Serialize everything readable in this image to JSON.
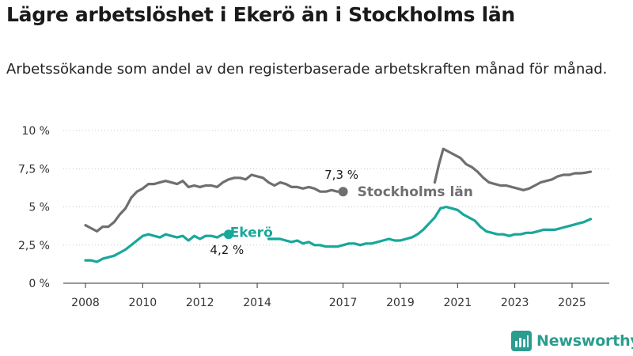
{
  "header": {
    "title": "Lägre arbetslöshet i Ekerö än i Stockholms län",
    "subtitle": "Arbetssökande som andel av den registerbaserade arbetskraften månad för månad."
  },
  "brand": {
    "name": "Newsworthy",
    "icon": "bar-chart-logo-icon"
  },
  "chart_data": {
    "type": "line",
    "title": "Lägre arbetslöshet i Ekerö än i Stockholms län",
    "subtitle": "Arbetssökande som andel av den registerbaserade arbetskraften månad för månad.",
    "xlabel": "",
    "ylabel": "",
    "x_ticks": [
      2008,
      2010,
      2012,
      2014,
      2017,
      2019,
      2021,
      2023,
      2025
    ],
    "y_ticks": [
      0,
      2.5,
      5,
      7.5,
      10
    ],
    "y_tick_labels": [
      "0 %",
      "2,5 %",
      "5 %",
      "7,5 %",
      "10 %"
    ],
    "ylim": [
      0,
      10
    ],
    "xlim": [
      2007.6,
      2026.0
    ],
    "grid": true,
    "series": [
      {
        "name": "Stockholms län",
        "color": "#6f6e72",
        "end_label": "7,3 %",
        "points": [
          [
            2008.0,
            3.8
          ],
          [
            2008.2,
            3.6
          ],
          [
            2008.4,
            3.4
          ],
          [
            2008.6,
            3.7
          ],
          [
            2008.8,
            3.7
          ],
          [
            2009.0,
            4.0
          ],
          [
            2009.2,
            4.5
          ],
          [
            2009.4,
            4.9
          ],
          [
            2009.6,
            5.6
          ],
          [
            2009.8,
            6.0
          ],
          [
            2010.0,
            6.2
          ],
          [
            2010.2,
            6.5
          ],
          [
            2010.4,
            6.5
          ],
          [
            2010.6,
            6.6
          ],
          [
            2010.8,
            6.7
          ],
          [
            2011.0,
            6.6
          ],
          [
            2011.2,
            6.5
          ],
          [
            2011.4,
            6.7
          ],
          [
            2011.6,
            6.3
          ],
          [
            2011.8,
            6.4
          ],
          [
            2012.0,
            6.3
          ],
          [
            2012.2,
            6.4
          ],
          [
            2012.4,
            6.4
          ],
          [
            2012.6,
            6.3
          ],
          [
            2012.8,
            6.6
          ],
          [
            2013.0,
            6.8
          ],
          [
            2013.2,
            6.9
          ],
          [
            2013.4,
            6.9
          ],
          [
            2013.6,
            6.8
          ],
          [
            2013.8,
            7.1
          ],
          [
            2014.0,
            7.0
          ],
          [
            2014.2,
            6.9
          ],
          [
            2014.4,
            6.6
          ],
          [
            2014.6,
            6.4
          ],
          [
            2014.8,
            6.6
          ],
          [
            2015.0,
            6.5
          ],
          [
            2015.2,
            6.3
          ],
          [
            2015.4,
            6.3
          ],
          [
            2015.6,
            6.2
          ],
          [
            2015.8,
            6.3
          ],
          [
            2016.0,
            6.2
          ],
          [
            2016.2,
            6.0
          ],
          [
            2016.4,
            6.0
          ],
          [
            2016.6,
            6.1
          ],
          [
            2016.8,
            6.0
          ],
          [
            2017.0,
            6.0
          ]
        ]
      },
      {
        "name": "Stockholms län (fortsättning)",
        "color": "#6f6e72",
        "points": [
          [
            2020.2,
            6.6
          ],
          [
            2020.35,
            7.8
          ],
          [
            2020.5,
            8.8
          ],
          [
            2020.7,
            8.6
          ],
          [
            2020.9,
            8.4
          ],
          [
            2021.1,
            8.2
          ],
          [
            2021.3,
            7.8
          ],
          [
            2021.5,
            7.6
          ],
          [
            2021.7,
            7.3
          ],
          [
            2021.9,
            6.9
          ],
          [
            2022.1,
            6.6
          ],
          [
            2022.3,
            6.5
          ],
          [
            2022.5,
            6.4
          ],
          [
            2022.7,
            6.4
          ],
          [
            2022.9,
            6.3
          ],
          [
            2023.1,
            6.2
          ],
          [
            2023.3,
            6.1
          ],
          [
            2023.5,
            6.2
          ],
          [
            2023.7,
            6.4
          ],
          [
            2023.9,
            6.6
          ],
          [
            2024.1,
            6.7
          ],
          [
            2024.3,
            6.8
          ],
          [
            2024.5,
            7.0
          ],
          [
            2024.7,
            7.1
          ],
          [
            2024.9,
            7.1
          ],
          [
            2025.1,
            7.2
          ],
          [
            2025.3,
            7.2
          ],
          [
            2025.5,
            7.25
          ],
          [
            2025.65,
            7.3
          ]
        ]
      },
      {
        "name": "Ekerö",
        "color": "#18a79a",
        "end_label": "4,2 %",
        "points": [
          [
            2008.0,
            1.5
          ],
          [
            2008.2,
            1.5
          ],
          [
            2008.4,
            1.4
          ],
          [
            2008.6,
            1.6
          ],
          [
            2008.8,
            1.7
          ],
          [
            2009.0,
            1.8
          ],
          [
            2009.2,
            2.0
          ],
          [
            2009.4,
            2.2
          ],
          [
            2009.6,
            2.5
          ],
          [
            2009.8,
            2.8
          ],
          [
            2010.0,
            3.1
          ],
          [
            2010.2,
            3.2
          ],
          [
            2010.4,
            3.1
          ],
          [
            2010.6,
            3.0
          ],
          [
            2010.8,
            3.2
          ],
          [
            2011.0,
            3.1
          ],
          [
            2011.2,
            3.0
          ],
          [
            2011.4,
            3.1
          ],
          [
            2011.6,
            2.8
          ],
          [
            2011.8,
            3.1
          ],
          [
            2012.0,
            2.9
          ],
          [
            2012.2,
            3.1
          ],
          [
            2012.4,
            3.1
          ],
          [
            2012.6,
            3.0
          ],
          [
            2012.8,
            3.2
          ],
          [
            2013.0,
            3.2
          ]
        ]
      },
      {
        "name": "Ekerö (fortsättning)",
        "color": "#18a79a",
        "points": [
          [
            2014.4,
            2.9
          ],
          [
            2014.6,
            2.9
          ],
          [
            2014.8,
            2.9
          ],
          [
            2015.0,
            2.8
          ],
          [
            2015.2,
            2.7
          ],
          [
            2015.4,
            2.8
          ],
          [
            2015.6,
            2.6
          ],
          [
            2015.8,
            2.7
          ],
          [
            2016.0,
            2.5
          ],
          [
            2016.2,
            2.5
          ],
          [
            2016.4,
            2.4
          ],
          [
            2016.6,
            2.4
          ],
          [
            2016.8,
            2.4
          ],
          [
            2017.0,
            2.5
          ],
          [
            2017.2,
            2.6
          ],
          [
            2017.4,
            2.6
          ],
          [
            2017.6,
            2.5
          ],
          [
            2017.8,
            2.6
          ],
          [
            2018.0,
            2.6
          ],
          [
            2018.2,
            2.7
          ],
          [
            2018.4,
            2.8
          ],
          [
            2018.6,
            2.9
          ],
          [
            2018.8,
            2.8
          ],
          [
            2019.0,
            2.8
          ],
          [
            2019.2,
            2.9
          ],
          [
            2019.4,
            3.0
          ],
          [
            2019.6,
            3.2
          ],
          [
            2019.8,
            3.5
          ],
          [
            2020.0,
            3.9
          ],
          [
            2020.2,
            4.3
          ],
          [
            2020.4,
            4.9
          ],
          [
            2020.6,
            5.0
          ],
          [
            2020.8,
            4.9
          ],
          [
            2021.0,
            4.8
          ],
          [
            2021.2,
            4.5
          ],
          [
            2021.4,
            4.3
          ],
          [
            2021.6,
            4.1
          ],
          [
            2021.8,
            3.7
          ],
          [
            2022.0,
            3.4
          ],
          [
            2022.2,
            3.3
          ],
          [
            2022.4,
            3.2
          ],
          [
            2022.6,
            3.2
          ],
          [
            2022.8,
            3.1
          ],
          [
            2023.0,
            3.2
          ],
          [
            2023.2,
            3.2
          ],
          [
            2023.4,
            3.3
          ],
          [
            2023.6,
            3.3
          ],
          [
            2023.8,
            3.4
          ],
          [
            2024.0,
            3.5
          ],
          [
            2024.2,
            3.5
          ],
          [
            2024.4,
            3.5
          ],
          [
            2024.6,
            3.6
          ],
          [
            2024.8,
            3.7
          ],
          [
            2025.0,
            3.8
          ],
          [
            2025.2,
            3.9
          ],
          [
            2025.4,
            4.0
          ],
          [
            2025.65,
            4.2
          ]
        ]
      }
    ],
    "annotations": [
      {
        "text": "Stockholms län",
        "series": "Stockholms län",
        "x": 2017.5,
        "y": 6.0,
        "anchor": "start"
      },
      {
        "text": "Ekerö",
        "series": "Ekerö",
        "x": 2013.05,
        "y": 3.35,
        "anchor": "start"
      }
    ]
  }
}
